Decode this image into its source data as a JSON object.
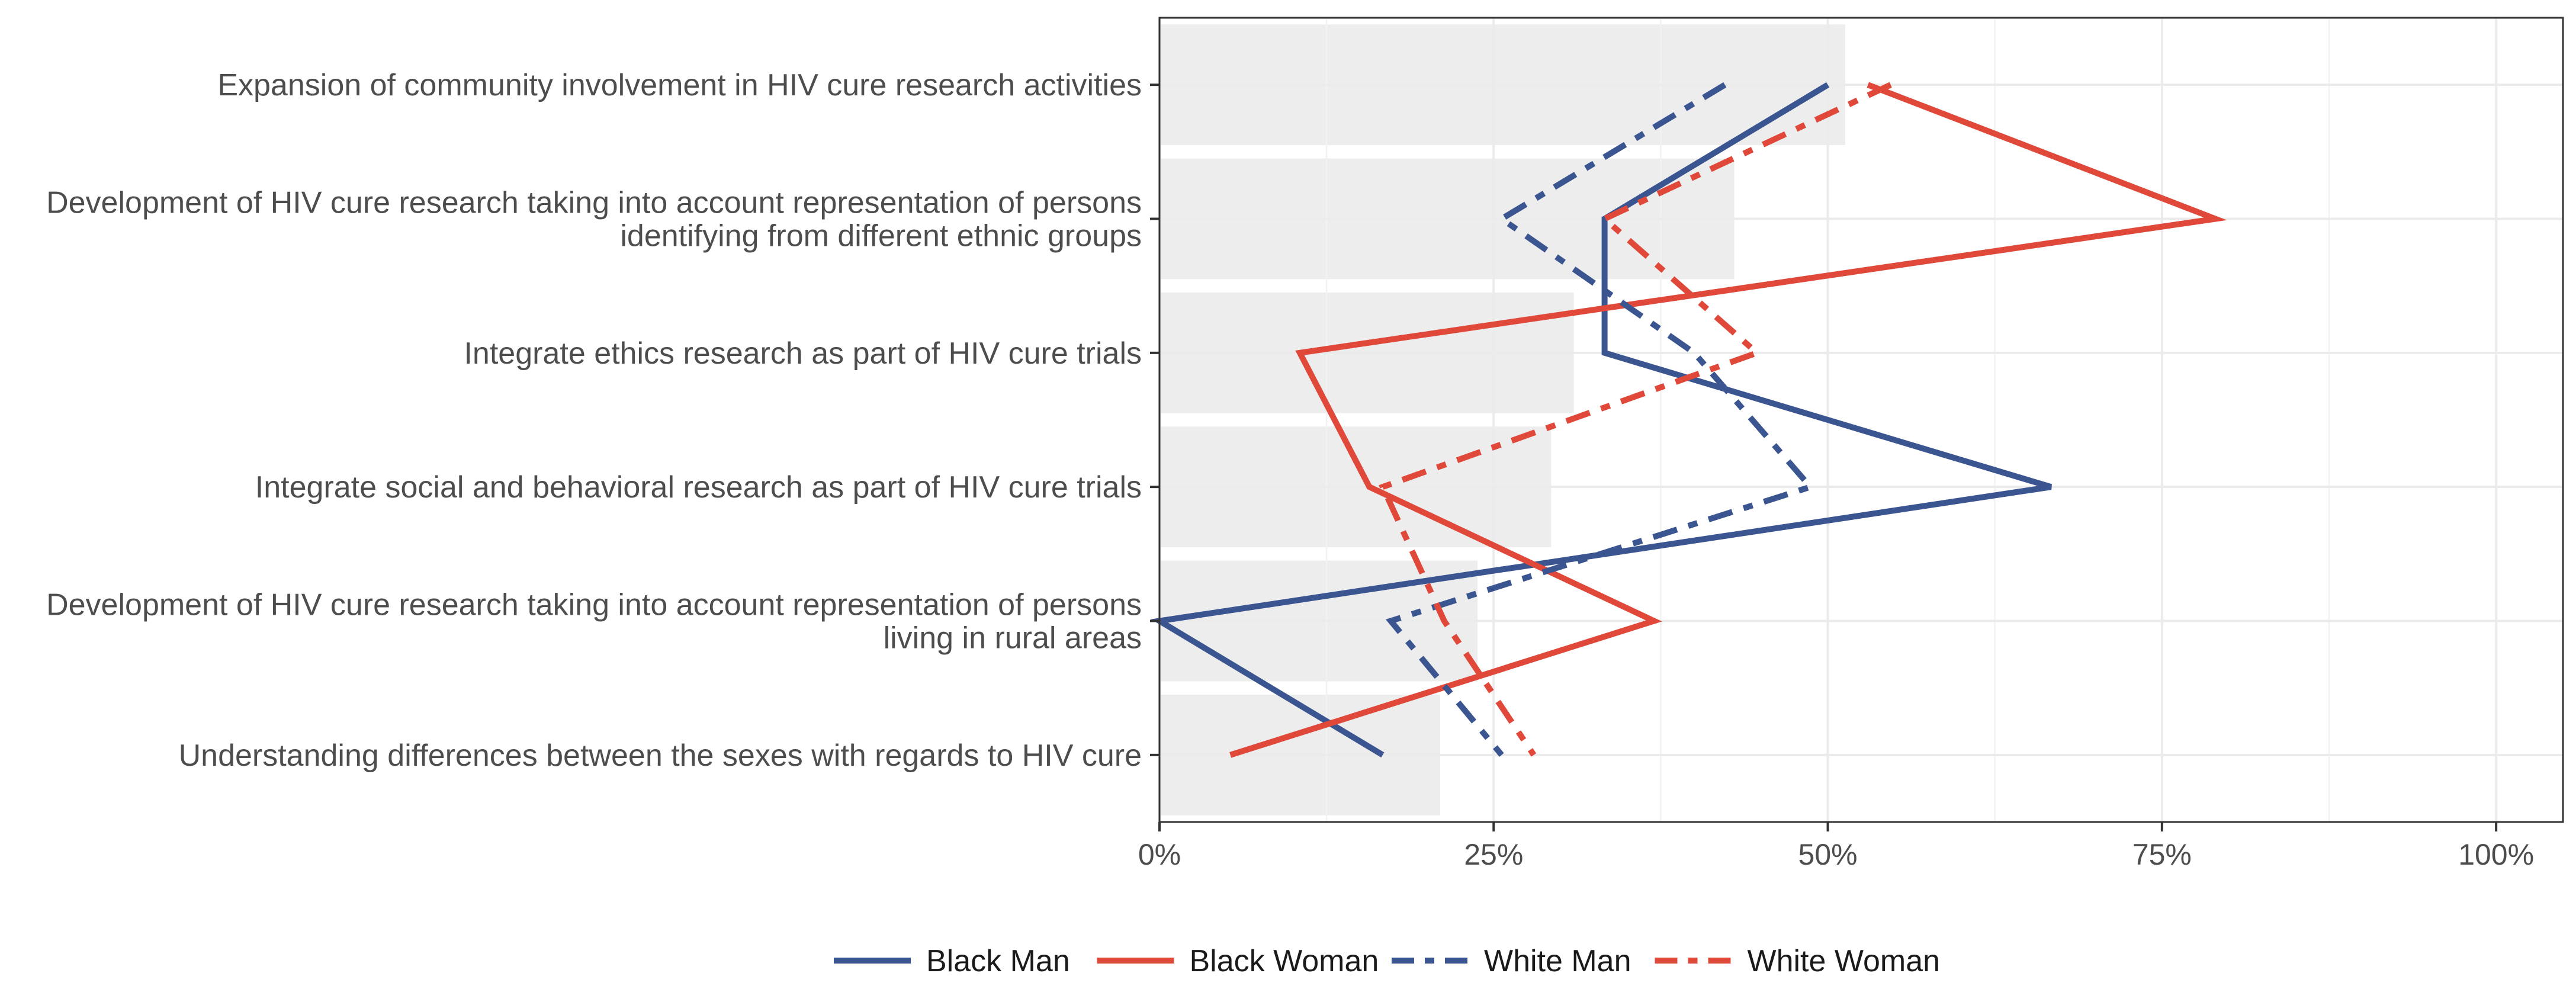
{
  "chart_data": {
    "type": "line",
    "orientation": "horizontal",
    "title": "",
    "xlabel": "",
    "ylabel": "",
    "xlim": [
      0,
      1.05
    ],
    "x_ticks": [
      0,
      0.25,
      0.5,
      0.75,
      1.0
    ],
    "x_tick_labels": [
      "0%",
      "25%",
      "50%",
      "75%",
      "100%"
    ],
    "grid": true,
    "legend_position": "bottom",
    "categories": [
      [
        "Expansion of community involvement in HIV cure research activities"
      ],
      [
        "Development of HIV cure research taking into account representation of persons",
        "identifying from different ethnic groups"
      ],
      [
        "Integrate ethics research as part of HIV cure trials"
      ],
      [
        "Integrate social and behavioral research as part of HIV cure trials"
      ],
      [
        "Development of HIV cure research taking into account representation of persons",
        "living in rural areas"
      ],
      [
        "Understanding differences between the sexes with regards to HIV cure"
      ]
    ],
    "bar_values": [
      0.513,
      0.43,
      0.31,
      0.293,
      0.238,
      0.21
    ],
    "series": [
      {
        "name": "Black Man",
        "color": "#3b5591",
        "dash": "solid",
        "values": [
          0.5,
          0.333,
          0.333,
          0.667,
          0.0,
          0.167
        ]
      },
      {
        "name": "Black Woman",
        "color": "#e0483a",
        "dash": "solid",
        "values": [
          0.53,
          0.79,
          0.105,
          0.157,
          0.37,
          0.053
        ]
      },
      {
        "name": "White Man",
        "color": "#3b5591",
        "dash": "dashdot",
        "values": [
          0.423,
          0.256,
          0.4,
          0.487,
          0.173,
          0.256
        ]
      },
      {
        "name": "White Woman",
        "color": "#e0483a",
        "dash": "dashdot",
        "values": [
          0.547,
          0.333,
          0.447,
          0.167,
          0.213,
          0.28
        ]
      }
    ]
  }
}
